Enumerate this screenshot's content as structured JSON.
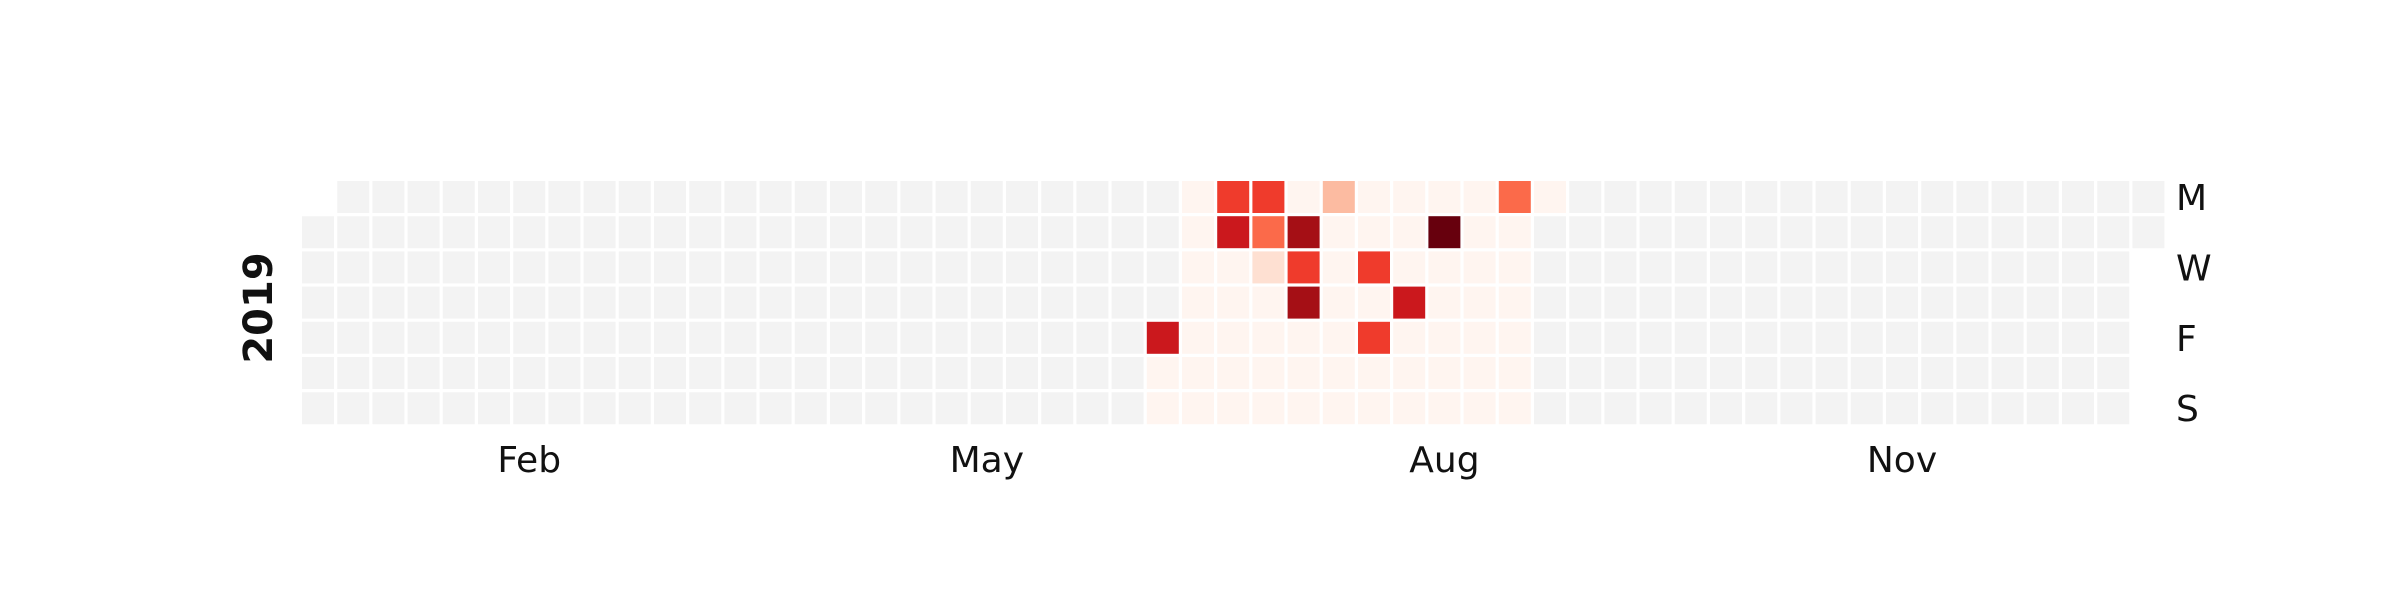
{
  "chart_data": {
    "type": "heatmap",
    "title": "",
    "year_label": "2019",
    "x_tick_labels": [
      {
        "label": "Feb",
        "week": 6
      },
      {
        "label": "May",
        "week": 19
      },
      {
        "label": "Aug",
        "week": 32
      },
      {
        "label": "Nov",
        "week": 45
      }
    ],
    "y_tick_labels": [
      {
        "label": "M",
        "day": 0
      },
      {
        "label": "W",
        "day": 2
      },
      {
        "label": "F",
        "day": 4
      },
      {
        "label": "S",
        "day": 6
      }
    ],
    "first_day_offset": 1,
    "num_days": 365,
    "active_range": [
      171,
      244
    ],
    "colormap": [
      "#fff5f0",
      "#fee0d2",
      "#fcbba1",
      "#fc9272",
      "#fb6a4a",
      "#ef3b2c",
      "#cb181d",
      "#a50f15",
      "#67000d"
    ],
    "empty_color": "#f3f3f3",
    "highlighted_days": [
      {
        "date": "2019-06-21",
        "level": 6
      },
      {
        "date": "2019-07-01",
        "level": 5
      },
      {
        "date": "2019-07-02",
        "level": 6
      },
      {
        "date": "2019-07-08",
        "level": 5
      },
      {
        "date": "2019-07-09",
        "level": 4
      },
      {
        "date": "2019-07-10",
        "level": 1
      },
      {
        "date": "2019-07-16",
        "level": 7
      },
      {
        "date": "2019-07-17",
        "level": 5
      },
      {
        "date": "2019-07-18",
        "level": 7
      },
      {
        "date": "2019-07-22",
        "level": 2
      },
      {
        "date": "2019-07-31",
        "level": 5
      },
      {
        "date": "2019-08-02",
        "level": 5
      },
      {
        "date": "2019-08-08",
        "level": 6
      },
      {
        "date": "2019-08-13",
        "level": 8
      },
      {
        "date": "2019-08-26",
        "level": 4
      }
    ]
  }
}
